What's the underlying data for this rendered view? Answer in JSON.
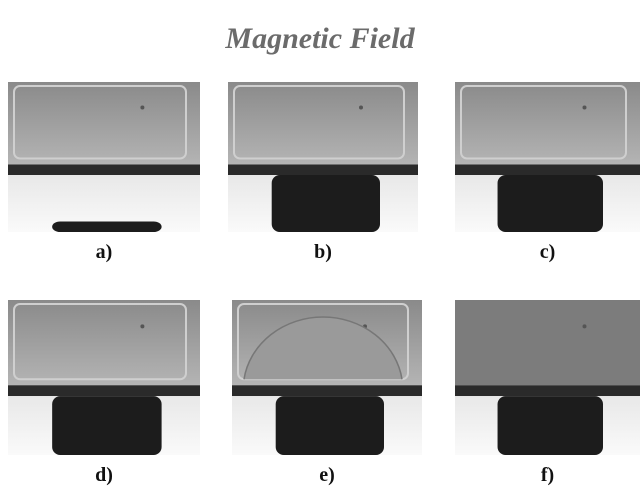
{
  "title": "Magnetic Field",
  "panels": [
    {
      "label": "a)"
    },
    {
      "label": "b)"
    },
    {
      "label": "c)"
    },
    {
      "label": "d)"
    },
    {
      "label": "e)"
    },
    {
      "label": "f)"
    }
  ]
}
